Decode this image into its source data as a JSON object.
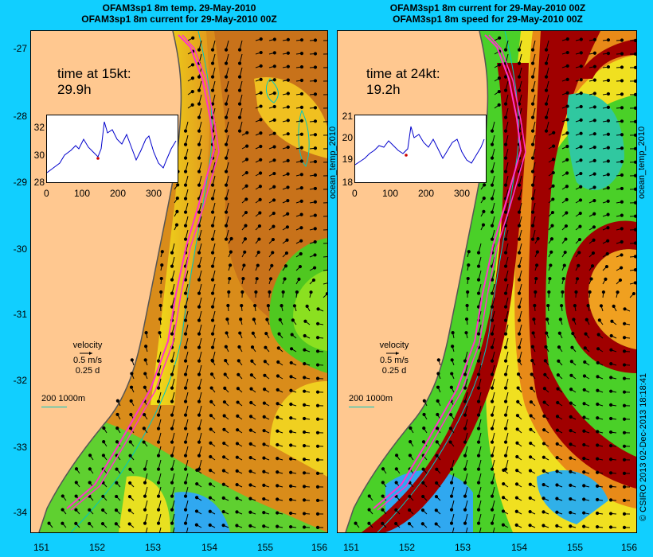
{
  "left": {
    "title_line1": "OFAM3sp1 8m temp. 29-May-2010",
    "title_line2": "OFAM3sp1 8m current for 29-May-2010 00Z",
    "time_label": "time at 15kt:",
    "time_value": "29.9h",
    "inset_yticks": [
      "32",
      "30",
      "28"
    ],
    "inset_xticks": [
      "0",
      "100",
      "200",
      "300"
    ],
    "velocity_label": "velocity",
    "velocity_speed": "0.5 m/s",
    "velocity_duration": "0.25 d",
    "contour_label": "200  1000m"
  },
  "right": {
    "title_line1": "OFAM3sp1 8m current for 29-May-2010 00Z",
    "title_line2": "OFAM3sp1 8m speed for 29-May-2010 00Z",
    "time_label": "time at 24kt:",
    "time_value": "19.2h",
    "inset_yticks": [
      "21",
      "20",
      "19",
      "18"
    ],
    "inset_xticks": [
      "0",
      "100",
      "200",
      "300"
    ],
    "velocity_label": "velocity",
    "velocity_speed": "0.5 m/s",
    "velocity_duration": "0.25 d",
    "contour_label": "200  1000m"
  },
  "lat_ticks": [
    "-27",
    "-28",
    "-29",
    "-30",
    "-31",
    "-32",
    "-33",
    "-34"
  ],
  "left_lon_ticks": [
    "151",
    "152",
    "153",
    "154",
    "155",
    "156"
  ],
  "right_lon_ticks": [
    "151",
    "152",
    "153",
    "154",
    "155",
    "156"
  ],
  "side_label_left": "ocean_temp_2010",
  "side_label_right": "ocean_temp_2010",
  "copyright": "© CSIRO 2013   02-Dec-2013 18:18:41",
  "colors": {
    "background": "#11cfff",
    "land": "#ffc890",
    "route": "#ff33cc",
    "warm": "#e08a1a",
    "hot": "#a00000"
  }
}
